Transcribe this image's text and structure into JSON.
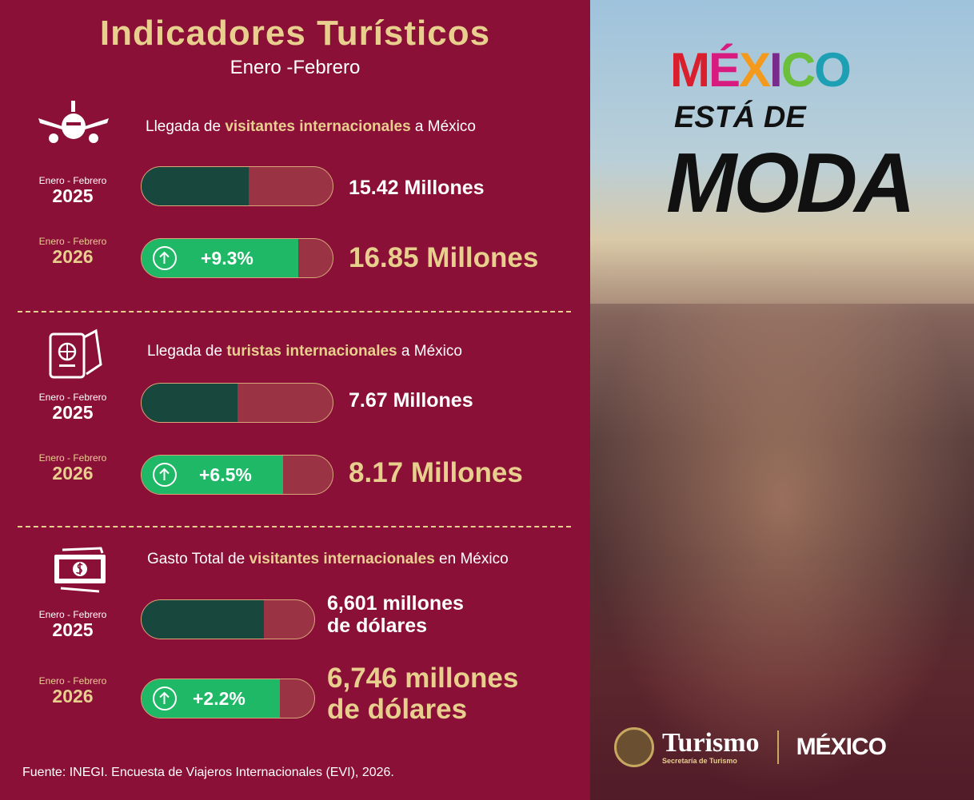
{
  "header": {
    "title": "Indicadores Turísticos",
    "subtitle": "Enero -Febrero"
  },
  "colors": {
    "background": "#8a1038",
    "accent": "#e8cf8e",
    "bar_2025": "#17473d",
    "bar_2026": "#1fb866",
    "bar_rest": "#9a3444"
  },
  "sections": [
    {
      "icon": "airplane-icon",
      "title_pre": "Llegada de ",
      "title_hl": "visitantes internacionales",
      "title_post": " a México",
      "rows": [
        {
          "period": "Enero - Febrero",
          "year": "2025",
          "fill": 0.56,
          "value": "15.42 Millones"
        },
        {
          "period": "Enero - Febrero",
          "year": "2026",
          "fill": 0.82,
          "change": "+9.3%",
          "value": "16.85 Millones"
        }
      ]
    },
    {
      "icon": "passport-icon",
      "title_pre": "Llegada de ",
      "title_hl": "turistas internacionales",
      "title_post": " a México",
      "rows": [
        {
          "period": "Enero - Febrero",
          "year": "2025",
          "fill": 0.5,
          "value": "7.67 Millones"
        },
        {
          "period": "Enero - Febrero",
          "year": "2026",
          "fill": 0.74,
          "change": "+6.5%",
          "value": "8.17 Millones"
        }
      ]
    },
    {
      "icon": "money-icon",
      "title_pre": "Gasto Total de ",
      "title_hl": "visitantes internacionales",
      "title_post": " en México",
      "rows": [
        {
          "period": "Enero - Febrero",
          "year": "2025",
          "fill": 0.71,
          "value_l1": "6,601 millones",
          "value_l2": "de dólares"
        },
        {
          "period": "Enero - Febrero",
          "year": "2026",
          "fill": 0.8,
          "change": "+2.2%",
          "value_l1": "6,746 millones",
          "value_l2": "de dólares"
        }
      ]
    }
  ],
  "source": "Fuente: INEGI. Encuesta de Viajeros Internacionales (EVI), 2026.",
  "photo": {
    "logo": "MÉXICO",
    "tagline_1": "ESTÁ DE",
    "tagline_2": "MODA",
    "brand": "Turismo",
    "brand_sub": "Secretaría de Turismo",
    "brand_logo": "MÉXICO"
  }
}
